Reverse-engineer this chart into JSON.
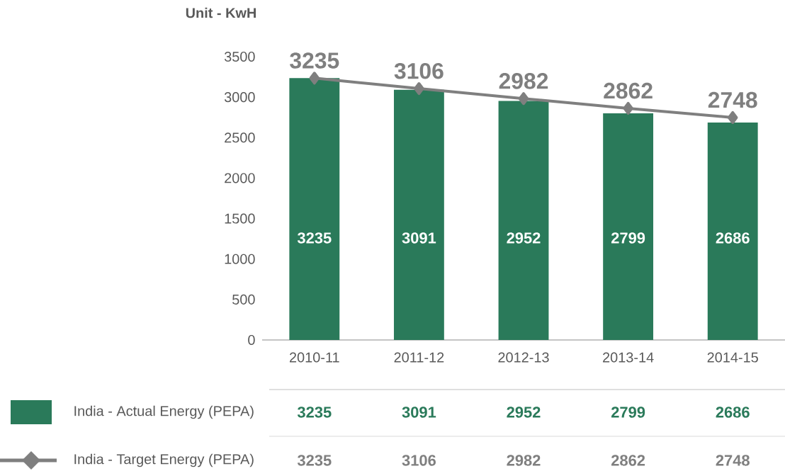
{
  "chart_data": {
    "ylabel": "Unit - KwH",
    "categories": [
      "2010-11",
      "2011-12",
      "2012-13",
      "2013-14",
      "2014-15"
    ],
    "series": [
      {
        "name": "India - Actual Energy (PEPA)",
        "color": "#2a7a5a",
        "values": [
          3235,
          3091,
          2952,
          2799,
          2686
        ],
        "value_labels": [
          "3235",
          "3091",
          "2952",
          "2799",
          "2686"
        ]
      },
      {
        "name": "India - Target Energy (PEPA)",
        "type": "line",
        "marker": "diamond",
        "color": "#7f7f7f",
        "values": [
          3235,
          3106,
          2982,
          2862,
          2748
        ],
        "value_labels": [
          "3235",
          "3106",
          "2982",
          "2862",
          "2748"
        ]
      }
    ],
    "type": "bar",
    "ylim": [
      0,
      3500
    ],
    "yticks": [
      0,
      500,
      1000,
      1500,
      2000,
      2500,
      3000,
      3500
    ],
    "legend": "bottom left"
  }
}
